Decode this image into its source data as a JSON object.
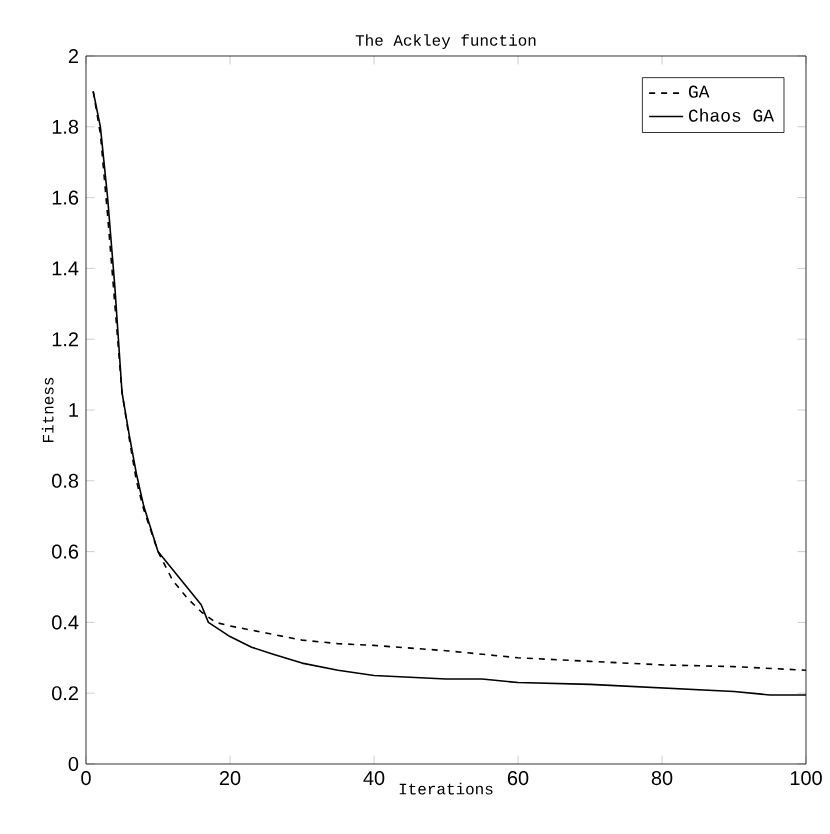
{
  "chart_data": {
    "type": "line",
    "title": "The Ackley function",
    "xlabel": "Iterations",
    "ylabel": "Fitness",
    "xlim": [
      0,
      100
    ],
    "ylim": [
      0,
      2
    ],
    "xticks": [
      0,
      20,
      40,
      60,
      80,
      100
    ],
    "yticks": [
      0,
      0.2,
      0.4,
      0.6,
      0.8,
      1,
      1.2,
      1.4,
      1.6,
      1.8,
      2
    ],
    "legend": "top right",
    "grid": false,
    "series": [
      {
        "name": "GA",
        "color": "#000000",
        "line_style": "dashed",
        "x": [
          1,
          2,
          3,
          4,
          5,
          6,
          7,
          8,
          10,
          12,
          14,
          16,
          18,
          20,
          25,
          30,
          35,
          40,
          50,
          60,
          70,
          80,
          90,
          100
        ],
        "values": [
          1.9,
          1.78,
          1.55,
          1.3,
          1.05,
          0.92,
          0.8,
          0.72,
          0.6,
          0.52,
          0.47,
          0.43,
          0.4,
          0.39,
          0.37,
          0.35,
          0.34,
          0.335,
          0.32,
          0.3,
          0.29,
          0.28,
          0.275,
          0.265
        ]
      },
      {
        "name": "Chaos GA",
        "color": "#000000",
        "line_style": "solid",
        "x": [
          1,
          2,
          3,
          4,
          5,
          6,
          7,
          8,
          10,
          12,
          14,
          16,
          17,
          20,
          23,
          26,
          30,
          35,
          40,
          50,
          55,
          60,
          70,
          80,
          90,
          95,
          100
        ],
        "values": [
          1.9,
          1.8,
          1.6,
          1.35,
          1.05,
          0.93,
          0.82,
          0.73,
          0.6,
          0.55,
          0.5,
          0.45,
          0.4,
          0.36,
          0.33,
          0.31,
          0.285,
          0.265,
          0.25,
          0.24,
          0.24,
          0.23,
          0.225,
          0.215,
          0.205,
          0.195,
          0.195
        ]
      }
    ]
  }
}
